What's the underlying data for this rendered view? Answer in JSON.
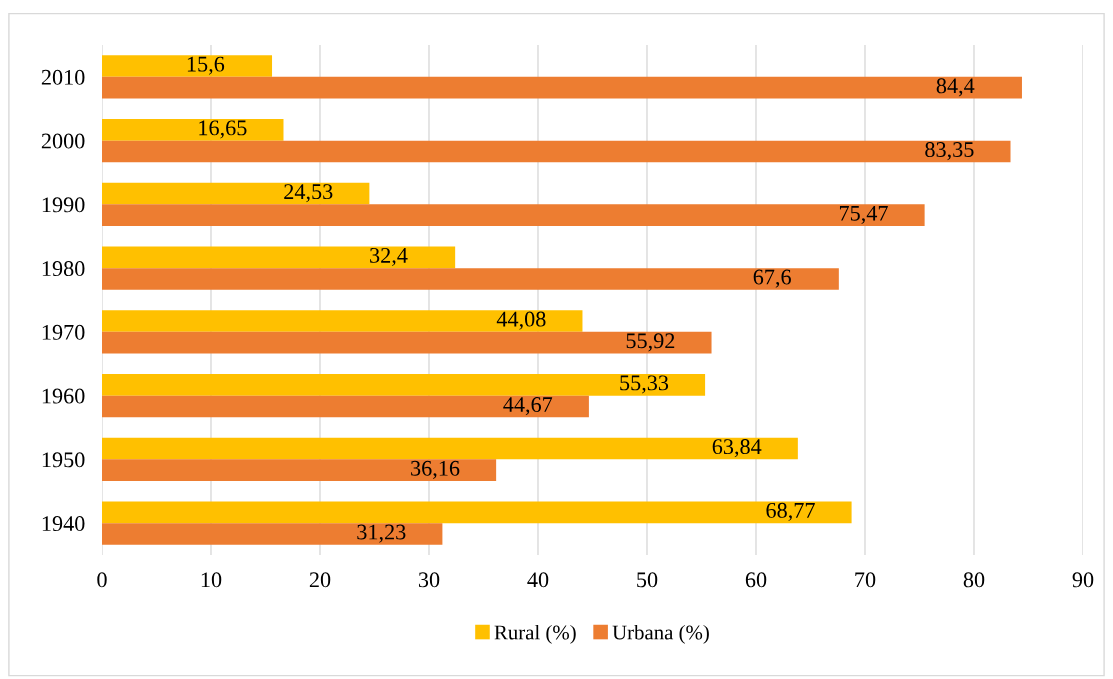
{
  "chart_data": {
    "type": "bar",
    "orientation": "horizontal",
    "categories": [
      "2010",
      "2000",
      "1990",
      "1980",
      "1970",
      "1960",
      "1950",
      "1940"
    ],
    "series": [
      {
        "name": "Rural (%)",
        "color": "#ffc000",
        "values": [
          15.6,
          16.65,
          24.53,
          32.4,
          44.08,
          55.33,
          63.84,
          68.77
        ],
        "value_labels": [
          "15,6",
          "16,65",
          "24,53",
          "32,4",
          "44,08",
          "55,33",
          "63,84",
          "68,77"
        ]
      },
      {
        "name": "Urbana (%)",
        "color": "#ed7d31",
        "values": [
          84.4,
          83.35,
          75.47,
          67.6,
          55.92,
          44.67,
          36.16,
          31.23
        ],
        "value_labels": [
          "84,4",
          "83,35",
          "75,47",
          "67,6",
          "55,92",
          "44,67",
          "36,16",
          "31,23"
        ]
      }
    ],
    "xlim": [
      0,
      90
    ],
    "xticks": [
      0,
      10,
      20,
      30,
      40,
      50,
      60,
      70,
      80,
      90
    ],
    "grid": "x",
    "legend": "bottom"
  }
}
